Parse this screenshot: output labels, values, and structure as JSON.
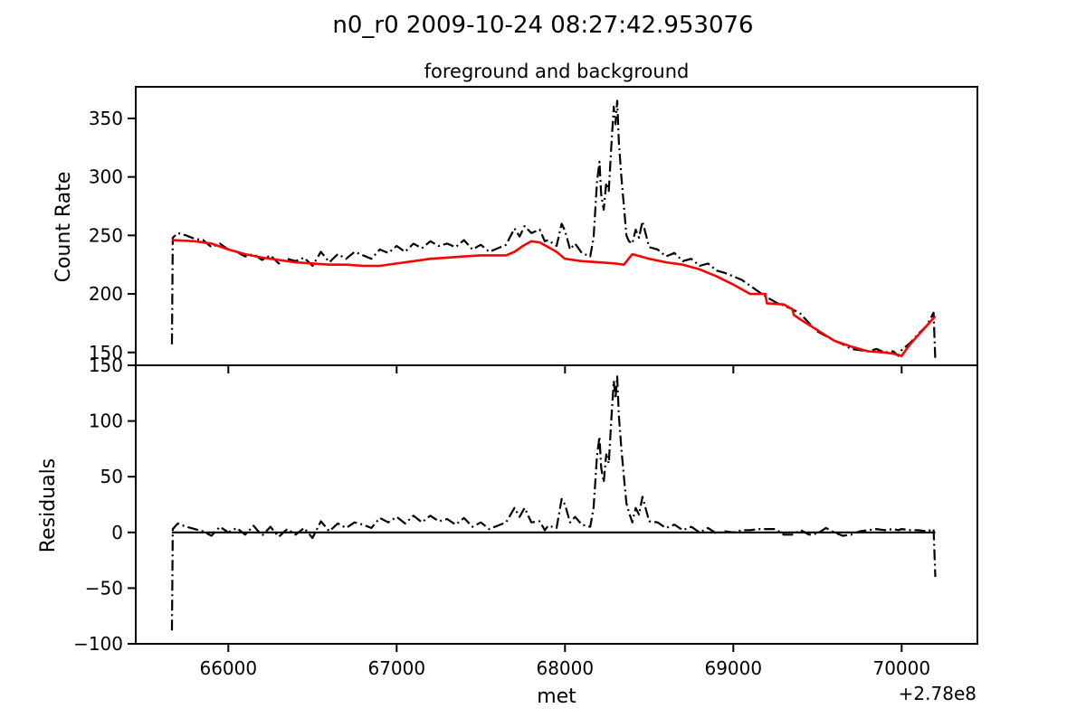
{
  "figure": {
    "suptitle": "n0_r0 2009-10-24 08:27:42.953076",
    "x_offset_label": "+2.78e8"
  },
  "chart_data": [
    {
      "type": "line",
      "title": "foreground and background",
      "xlabel": "",
      "ylabel": "Count Rate",
      "xlim": [
        65450,
        70450
      ],
      "ylim": [
        139,
        377
      ],
      "yticks": [
        150,
        200,
        250,
        300,
        350
      ],
      "grid": false,
      "series": [
        {
          "color": "#000000",
          "linestyle": "dashdot",
          "x": [
            65665,
            65670,
            65700,
            65750,
            65800,
            65850,
            65900,
            65950,
            66000,
            66050,
            66100,
            66150,
            66200,
            66250,
            66300,
            66350,
            66400,
            66450,
            66500,
            66550,
            66600,
            66650,
            66700,
            66750,
            66800,
            66850,
            66900,
            66950,
            67000,
            67050,
            67100,
            67150,
            67200,
            67250,
            67300,
            67350,
            67400,
            67450,
            67500,
            67550,
            67600,
            67650,
            67700,
            67730,
            67760,
            67800,
            67850,
            67880,
            67900,
            67950,
            67980,
            68000,
            68030,
            68060,
            68100,
            68150,
            68170,
            68190,
            68205,
            68215,
            68230,
            68245,
            68260,
            68275,
            68290,
            68300,
            68310,
            68320,
            68335,
            68350,
            68365,
            68380,
            68400,
            68420,
            68440,
            68460,
            68500,
            68550,
            68600,
            68650,
            68700,
            68750,
            68800,
            68850,
            68900,
            68950,
            69000,
            69050,
            69100,
            69150,
            69200,
            69250,
            69300,
            69350,
            69400,
            69450,
            69500,
            69550,
            69600,
            69650,
            69700,
            69750,
            69800,
            69850,
            69900,
            69950,
            69980,
            70000,
            70050,
            70100,
            70150,
            70190,
            70200
          ],
          "y": [
            157,
            248,
            252,
            250,
            247,
            246,
            240,
            243,
            238,
            236,
            232,
            234,
            229,
            233,
            226,
            230,
            228,
            231,
            224,
            236,
            227,
            234,
            230,
            236,
            233,
            230,
            238,
            235,
            241,
            236,
            243,
            239,
            245,
            241,
            243,
            240,
            246,
            238,
            242,
            236,
            239,
            242,
            256,
            249,
            258,
            252,
            255,
            245,
            246,
            241,
            260,
            254,
            238,
            243,
            235,
            232,
            248,
            295,
            313,
            285,
            272,
            295,
            288,
            325,
            360,
            345,
            365,
            330,
            300,
            275,
            250,
            245,
            243,
            255,
            248,
            262,
            240,
            238,
            232,
            235,
            228,
            230,
            224,
            226,
            220,
            218,
            215,
            212,
            207,
            202,
            197,
            193,
            190,
            187,
            183,
            175,
            168,
            164,
            160,
            157,
            153,
            152,
            151,
            153,
            150,
            151,
            147,
            152,
            158,
            166,
            173,
            184,
            143
          ]
        },
        {
          "color": "#ff0000",
          "linestyle": "solid",
          "x": [
            65665,
            65800,
            65900,
            66000,
            66100,
            66200,
            66300,
            66400,
            66500,
            66600,
            66700,
            66800,
            66900,
            67000,
            67100,
            67200,
            67300,
            67400,
            67500,
            67600,
            67650,
            67700,
            67750,
            67800,
            67850,
            67900,
            67950,
            68000,
            68100,
            68200,
            68300,
            68350,
            68400,
            68450,
            68500,
            68600,
            68700,
            68800,
            68900,
            69000,
            69100,
            69190,
            69200,
            69300,
            69350,
            69360,
            69400,
            69500,
            69600,
            69700,
            69800,
            69900,
            69950,
            70000,
            70050,
            70100,
            70150,
            70200
          ],
          "y": [
            246,
            245,
            243,
            238,
            234,
            231,
            229,
            227,
            226,
            225,
            225,
            224,
            224,
            226,
            228,
            230,
            231,
            232,
            233,
            233,
            233,
            236,
            241,
            245,
            244,
            240,
            236,
            230,
            228,
            227,
            226,
            225,
            234,
            232,
            230,
            227,
            225,
            221,
            215,
            208,
            200,
            200,
            192,
            191,
            187,
            182,
            178,
            169,
            160,
            155,
            151,
            150,
            149,
            147,
            157,
            165,
            173,
            181
          ]
        }
      ]
    },
    {
      "type": "line",
      "title": "",
      "xlabel": "met",
      "ylabel": "Residuals",
      "xlim": [
        65450,
        70450
      ],
      "ylim": [
        -100,
        150
      ],
      "yticks": [
        -100,
        -50,
        0,
        50,
        100,
        150
      ],
      "ytick_labels": [
        "−100",
        "−50",
        "0",
        "50",
        "100",
        "150"
      ],
      "xticks": [
        66000,
        67000,
        68000,
        69000,
        70000
      ],
      "xtick_labels": [
        "66000",
        "67000",
        "68000",
        "69000",
        "70000"
      ],
      "grid": false,
      "series": [
        {
          "color": "#000000",
          "linestyle": "dashdot",
          "x": [
            65665,
            65670,
            65700,
            65750,
            65800,
            65850,
            65900,
            65950,
            66000,
            66050,
            66100,
            66150,
            66200,
            66250,
            66300,
            66350,
            66400,
            66450,
            66500,
            66550,
            66600,
            66650,
            66700,
            66750,
            66800,
            66850,
            66900,
            66950,
            67000,
            67050,
            67100,
            67150,
            67200,
            67250,
            67300,
            67350,
            67400,
            67450,
            67500,
            67550,
            67600,
            67650,
            67700,
            67730,
            67760,
            67800,
            67850,
            67880,
            67900,
            67950,
            67980,
            68000,
            68030,
            68060,
            68100,
            68150,
            68170,
            68190,
            68205,
            68215,
            68230,
            68245,
            68260,
            68275,
            68290,
            68300,
            68310,
            68320,
            68335,
            68350,
            68365,
            68380,
            68400,
            68420,
            68440,
            68460,
            68500,
            68550,
            68600,
            68650,
            68700,
            68750,
            68800,
            68850,
            68900,
            68950,
            69000,
            69050,
            69100,
            69150,
            69200,
            69250,
            69300,
            69350,
            69400,
            69450,
            69500,
            69550,
            69600,
            69650,
            69700,
            69750,
            69800,
            69850,
            69900,
            69950,
            69980,
            70000,
            70050,
            70100,
            70150,
            70190,
            70200
          ],
          "y": [
            -88,
            3,
            8,
            5,
            3,
            1,
            -3,
            5,
            0,
            4,
            -2,
            6,
            -3,
            5,
            -4,
            3,
            -2,
            4,
            -5,
            10,
            1,
            8,
            4,
            9,
            7,
            4,
            13,
            9,
            14,
            8,
            15,
            9,
            15,
            10,
            12,
            7,
            13,
            5,
            9,
            3,
            6,
            9,
            22,
            14,
            22,
            9,
            10,
            2,
            6,
            4,
            30,
            25,
            9,
            14,
            7,
            5,
            22,
            68,
            86,
            58,
            45,
            70,
            62,
            100,
            136,
            120,
            140,
            105,
            75,
            50,
            26,
            18,
            9,
            22,
            16,
            32,
            10,
            9,
            4,
            7,
            2,
            5,
            0,
            4,
            -1,
            1,
            0,
            2,
            2,
            3,
            3,
            3,
            -2,
            -2,
            2,
            -2,
            -1,
            4,
            0,
            -3,
            -2,
            1,
            2,
            3,
            2,
            3,
            2,
            3,
            2,
            2,
            1,
            3,
            -40
          ]
        },
        {
          "color": "#000000",
          "linestyle": "solid",
          "x": [
            65665,
            70200
          ],
          "y": [
            0,
            0
          ]
        }
      ]
    }
  ]
}
